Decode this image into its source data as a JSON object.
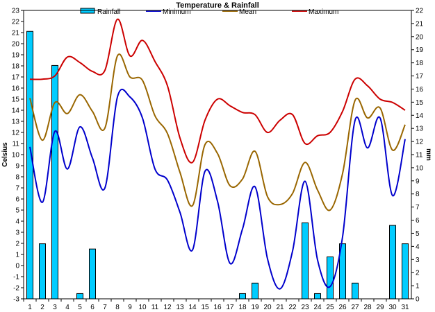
{
  "chart_data": {
    "type": "bar+line",
    "title": "Temperature & Rainfall",
    "ylabel_left": "Celsius",
    "ylabel_right": "mm",
    "ylim_left": [
      -3,
      23
    ],
    "ylim_right": [
      0,
      22
    ],
    "y_ticks_left": [
      -3,
      -2,
      -1,
      0,
      1,
      2,
      3,
      4,
      5,
      6,
      7,
      8,
      9,
      10,
      11,
      12,
      13,
      14,
      15,
      16,
      17,
      18,
      19,
      20,
      21,
      22,
      23
    ],
    "y_ticks_right": [
      0,
      1,
      2,
      3,
      4,
      5,
      6,
      7,
      8,
      9,
      10,
      11,
      12,
      13,
      14,
      15,
      16,
      17,
      18,
      19,
      20,
      21,
      22
    ],
    "categories": [
      "1",
      "2",
      "3",
      "4",
      "5",
      "6",
      "7",
      "8",
      "9",
      "10",
      "11",
      "12",
      "13",
      "14",
      "15",
      "16",
      "17",
      "18",
      "19",
      "20",
      "21",
      "22",
      "23",
      "24",
      "25",
      "26",
      "27",
      "28",
      "29",
      "30",
      "31"
    ],
    "legend_position": "top",
    "grid": false,
    "series": [
      {
        "name": "Rainfall",
        "type": "bar",
        "axis": "right",
        "color": "#00CCFF",
        "values": [
          20.4,
          4.2,
          17.8,
          0,
          0.4,
          3.8,
          0,
          0,
          0,
          0,
          0,
          0,
          0,
          0,
          0,
          0,
          0,
          0.4,
          1.2,
          0,
          0,
          0,
          5.8,
          0.4,
          3.2,
          4.2,
          1.2,
          0,
          0,
          5.6,
          4.2
        ]
      },
      {
        "name": "Minimum",
        "type": "line",
        "axis": "left",
        "color": "#0000CC",
        "values": [
          10.7,
          5.7,
          12.1,
          8.7,
          12.5,
          9.7,
          7.0,
          15.2,
          15.2,
          13.3,
          8.7,
          7.7,
          4.8,
          1.4,
          8.5,
          5.8,
          0.2,
          3.3,
          7.1,
          0.6,
          -2.1,
          1.3,
          7.6,
          0.5,
          -1.9,
          2.6,
          13.1,
          10.6,
          13.3,
          6.3,
          11.4
        ]
      },
      {
        "name": "Mean",
        "type": "line",
        "axis": "left",
        "color": "#996600",
        "values": [
          15.1,
          11.3,
          14.7,
          13.7,
          15.4,
          13.9,
          12.4,
          18.9,
          17.0,
          16.7,
          13.5,
          11.9,
          8.4,
          5.4,
          10.9,
          10.1,
          7.2,
          7.8,
          10.3,
          6.2,
          5.5,
          6.5,
          9.3,
          6.8,
          5.0,
          8.3,
          14.9,
          13.3,
          14.2,
          10.4,
          12.7
        ]
      },
      {
        "name": "Maximum",
        "type": "line",
        "axis": "left",
        "color": "#CC0000",
        "values": [
          16.8,
          16.8,
          17.1,
          18.8,
          18.3,
          17.5,
          17.6,
          22.2,
          18.9,
          20.3,
          18.4,
          16.2,
          11.5,
          9.3,
          13.1,
          15.0,
          14.4,
          13.8,
          13.6,
          12.0,
          13.1,
          13.6,
          11.0,
          11.7,
          12.0,
          13.9,
          16.8,
          16.2,
          15.0,
          14.7,
          14.0
        ]
      }
    ]
  }
}
